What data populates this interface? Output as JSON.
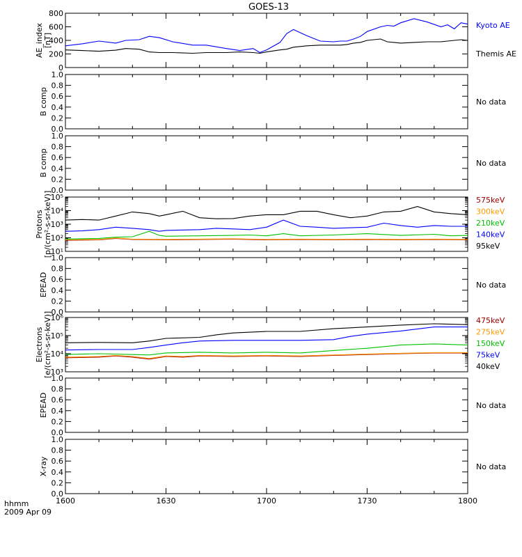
{
  "title": "GOES-13",
  "x_axis": {
    "ticks": [
      "1600",
      "1630",
      "1700",
      "1730",
      "1800"
    ],
    "label_line1": "hhmm",
    "label_line2": "2009 Apr 09"
  },
  "no_data_text": "No data",
  "chart_data": [
    {
      "id": "ae",
      "type": "line",
      "ylabel": [
        "AE_index",
        "[nT]"
      ],
      "ylim": [
        0,
        800
      ],
      "yscale": "linear",
      "ticks": [
        {
          "v": 0,
          "t": "0"
        },
        {
          "v": 200,
          "t": "200"
        },
        {
          "v": 400,
          "t": "400"
        },
        {
          "v": 600,
          "t": "600"
        },
        {
          "v": 800,
          "t": "800"
        }
      ],
      "xlim": [
        0,
        120
      ],
      "series": [
        {
          "name": "Kyoto AE",
          "color": "#0000ff",
          "x": [
            0,
            5,
            10,
            15,
            18,
            22,
            25,
            28,
            32,
            38,
            42,
            48,
            52,
            56,
            58,
            60,
            64,
            66,
            68,
            72,
            76,
            80,
            82,
            84,
            86,
            88,
            90,
            94,
            96,
            98,
            100,
            104,
            108,
            112,
            114,
            116,
            118,
            120
          ],
          "y": [
            320,
            350,
            390,
            360,
            400,
            410,
            460,
            440,
            380,
            330,
            330,
            280,
            250,
            280,
            220,
            260,
            370,
            500,
            560,
            470,
            390,
            380,
            390,
            390,
            420,
            460,
            530,
            600,
            620,
            610,
            660,
            720,
            670,
            600,
            630,
            570,
            660,
            640
          ]
        },
        {
          "name": "Themis AE",
          "color": "#000000",
          "x": [
            0,
            5,
            10,
            15,
            18,
            22,
            25,
            28,
            32,
            38,
            42,
            48,
            52,
            56,
            58,
            60,
            64,
            66,
            68,
            72,
            76,
            80,
            82,
            84,
            86,
            88,
            90,
            94,
            96,
            98,
            100,
            104,
            108,
            112,
            114,
            116,
            118,
            120
          ],
          "y": [
            260,
            250,
            240,
            255,
            280,
            270,
            230,
            220,
            220,
            210,
            220,
            220,
            230,
            220,
            210,
            230,
            260,
            270,
            300,
            320,
            330,
            330,
            330,
            340,
            360,
            370,
            400,
            420,
            380,
            370,
            360,
            370,
            380,
            380,
            390,
            400,
            410,
            400
          ]
        }
      ]
    },
    {
      "id": "bcomp1",
      "type": "line",
      "ylabel": [
        "B comp"
      ],
      "ylim": [
        0,
        1
      ],
      "yscale": "linear",
      "ticks": [
        {
          "v": 0,
          "t": "0.0"
        },
        {
          "v": 0.2,
          "t": "0.2"
        },
        {
          "v": 0.4,
          "t": "0.4"
        },
        {
          "v": 0.6,
          "t": "0.6"
        },
        {
          "v": 0.8,
          "t": "0.8"
        },
        {
          "v": 1,
          "t": "1.0"
        }
      ],
      "nodata": true,
      "series": []
    },
    {
      "id": "bcomp2",
      "type": "line",
      "ylabel": [
        "B comp"
      ],
      "ylim": [
        0,
        1
      ],
      "yscale": "linear",
      "ticks": [
        {
          "v": 0,
          "t": "0.0"
        },
        {
          "v": 0.2,
          "t": "0.2"
        },
        {
          "v": 0.4,
          "t": "0.4"
        },
        {
          "v": 0.6,
          "t": "0.6"
        },
        {
          "v": 0.8,
          "t": "0.8"
        },
        {
          "v": 1,
          "t": "1.0"
        }
      ],
      "nodata": true,
      "series": []
    },
    {
      "id": "protons",
      "type": "line",
      "ylabel": [
        "Protons",
        "[p/(cm²-s-sr-keV)]"
      ],
      "ylim": [
        10,
        100000
      ],
      "yscale": "log",
      "ticks": [
        {
          "v": 10,
          "t": "10¹"
        },
        {
          "v": 100,
          "t": "10²"
        },
        {
          "v": 1000,
          "t": "10³"
        },
        {
          "v": 10000,
          "t": "10⁴"
        },
        {
          "v": 100000,
          "t": "10⁵"
        }
      ],
      "xlim": [
        0,
        120
      ],
      "series": [
        {
          "name": "575keV",
          "color": "#a00000",
          "x": [
            0,
            10,
            15,
            20,
            30,
            40,
            50,
            60,
            70,
            80,
            90,
            100,
            110,
            120
          ],
          "y": [
            65,
            70,
            90,
            75,
            70,
            75,
            80,
            70,
            75,
            70,
            75,
            70,
            75,
            70
          ]
        },
        {
          "name": "300keV",
          "color": "#ff9900",
          "x": [
            0,
            10,
            15,
            20,
            30,
            40,
            50,
            60,
            70,
            80,
            90,
            100,
            110,
            120
          ],
          "y": [
            70,
            75,
            95,
            80,
            75,
            80,
            85,
            75,
            80,
            75,
            80,
            75,
            80,
            75
          ]
        },
        {
          "name": "210keV",
          "color": "#00c000",
          "x": [
            0,
            5,
            10,
            15,
            20,
            25,
            28,
            30,
            40,
            50,
            55,
            60,
            65,
            70,
            80,
            90,
            100,
            110,
            115,
            120
          ],
          "y": [
            80,
            85,
            90,
            110,
            120,
            300,
            150,
            130,
            140,
            150,
            160,
            140,
            200,
            140,
            160,
            200,
            150,
            180,
            140,
            150
          ]
        },
        {
          "name": "140keV",
          "color": "#0000ff",
          "x": [
            0,
            5,
            10,
            15,
            20,
            25,
            28,
            30,
            40,
            45,
            50,
            55,
            60,
            65,
            70,
            75,
            80,
            90,
            95,
            100,
            105,
            110,
            115,
            120
          ],
          "y": [
            300,
            320,
            400,
            600,
            500,
            400,
            300,
            350,
            400,
            500,
            450,
            400,
            600,
            2000,
            700,
            600,
            500,
            600,
            1200,
            800,
            600,
            800,
            700,
            700
          ]
        },
        {
          "name": "95keV",
          "color": "#000000",
          "x": [
            0,
            5,
            10,
            15,
            20,
            25,
            28,
            30,
            35,
            40,
            45,
            50,
            55,
            60,
            65,
            70,
            75,
            80,
            85,
            90,
            95,
            100,
            105,
            110,
            115,
            120
          ],
          "y": [
            2000,
            2200,
            2000,
            4000,
            8000,
            6000,
            4000,
            5000,
            9000,
            3000,
            2500,
            2600,
            4000,
            5000,
            5000,
            9000,
            9000,
            5000,
            3000,
            4000,
            8000,
            9000,
            20000,
            8000,
            6000,
            5000
          ]
        }
      ]
    },
    {
      "id": "epead_p",
      "type": "line",
      "ylabel": [
        "EPEAD"
      ],
      "ylim": [
        0,
        1
      ],
      "yscale": "linear",
      "ticks": [
        {
          "v": 0,
          "t": "0.0"
        },
        {
          "v": 0.2,
          "t": "0.2"
        },
        {
          "v": 0.4,
          "t": "0.4"
        },
        {
          "v": 0.6,
          "t": "0.6"
        },
        {
          "v": 0.8,
          "t": "0.8"
        },
        {
          "v": 1,
          "t": "1.0"
        }
      ],
      "nodata": true,
      "series": []
    },
    {
      "id": "electrons",
      "type": "line",
      "ylabel": [
        "Electrons",
        "[e/(cm²-s-sr-keV)]"
      ],
      "ylim": [
        1000,
        1000000
      ],
      "yscale": "log",
      "ticks": [
        {
          "v": 1000,
          "t": "10³"
        },
        {
          "v": 10000,
          "t": "10⁴"
        },
        {
          "v": 100000,
          "t": "10⁵"
        },
        {
          "v": 1000000,
          "t": "10⁶"
        }
      ],
      "xlim": [
        0,
        120
      ],
      "series": [
        {
          "name": "475keV",
          "color": "#a00000",
          "x": [
            0,
            10,
            15,
            20,
            25,
            30,
            35,
            40,
            50,
            60,
            70,
            80,
            90,
            100,
            110,
            120
          ],
          "y": [
            6000,
            6500,
            7500,
            6500,
            5000,
            7000,
            6500,
            7500,
            7000,
            7500,
            7000,
            8000,
            9000,
            10000,
            11000,
            11000
          ]
        },
        {
          "name": "275keV",
          "color": "#ff9900",
          "x": [
            0,
            10,
            15,
            20,
            25,
            30,
            35,
            40,
            50,
            60,
            70,
            80,
            90,
            100,
            110,
            120
          ],
          "y": [
            6500,
            7000,
            8000,
            7000,
            5500,
            7500,
            7000,
            8000,
            7500,
            8000,
            7500,
            8500,
            9500,
            10500,
            11500,
            11500
          ]
        },
        {
          "name": "150keV",
          "color": "#00c000",
          "x": [
            0,
            10,
            20,
            25,
            30,
            40,
            50,
            60,
            70,
            80,
            90,
            100,
            110,
            120
          ],
          "y": [
            9000,
            10000,
            9000,
            8500,
            11000,
            12000,
            11000,
            12000,
            11000,
            15000,
            20000,
            30000,
            35000,
            30000
          ]
        },
        {
          "name": "75keV",
          "color": "#0000ff",
          "x": [
            0,
            10,
            20,
            25,
            30,
            35,
            40,
            50,
            60,
            70,
            80,
            85,
            90,
            100,
            110,
            120
          ],
          "y": [
            16000,
            17000,
            17000,
            22000,
            30000,
            40000,
            50000,
            55000,
            55000,
            55000,
            60000,
            90000,
            120000,
            180000,
            300000,
            300000
          ]
        },
        {
          "name": "40keV",
          "color": "#000000",
          "x": [
            0,
            10,
            20,
            25,
            30,
            40,
            45,
            50,
            60,
            70,
            80,
            90,
            100,
            110,
            120
          ],
          "y": [
            40000,
            42000,
            40000,
            50000,
            70000,
            80000,
            110000,
            140000,
            170000,
            170000,
            240000,
            300000,
            380000,
            450000,
            400000
          ]
        }
      ]
    },
    {
      "id": "epead_e",
      "type": "line",
      "ylabel": [
        "EPEAD"
      ],
      "ylim": [
        0,
        1
      ],
      "yscale": "linear",
      "ticks": [
        {
          "v": 0,
          "t": "0.0"
        },
        {
          "v": 0.2,
          "t": "0.2"
        },
        {
          "v": 0.4,
          "t": "0.4"
        },
        {
          "v": 0.6,
          "t": "0.6"
        },
        {
          "v": 0.8,
          "t": "0.8"
        },
        {
          "v": 1,
          "t": "1.0"
        }
      ],
      "nodata": true,
      "series": []
    },
    {
      "id": "xray",
      "type": "line",
      "ylabel": [
        "X-ray"
      ],
      "ylim": [
        0,
        1
      ],
      "yscale": "linear",
      "ticks": [
        {
          "v": 0,
          "t": "0.0"
        },
        {
          "v": 0.2,
          "t": "0.2"
        },
        {
          "v": 0.4,
          "t": "0.4"
        },
        {
          "v": 0.6,
          "t": "0.6"
        },
        {
          "v": 0.8,
          "t": "0.8"
        },
        {
          "v": 1,
          "t": "1.0"
        }
      ],
      "nodata": true,
      "series": []
    }
  ]
}
